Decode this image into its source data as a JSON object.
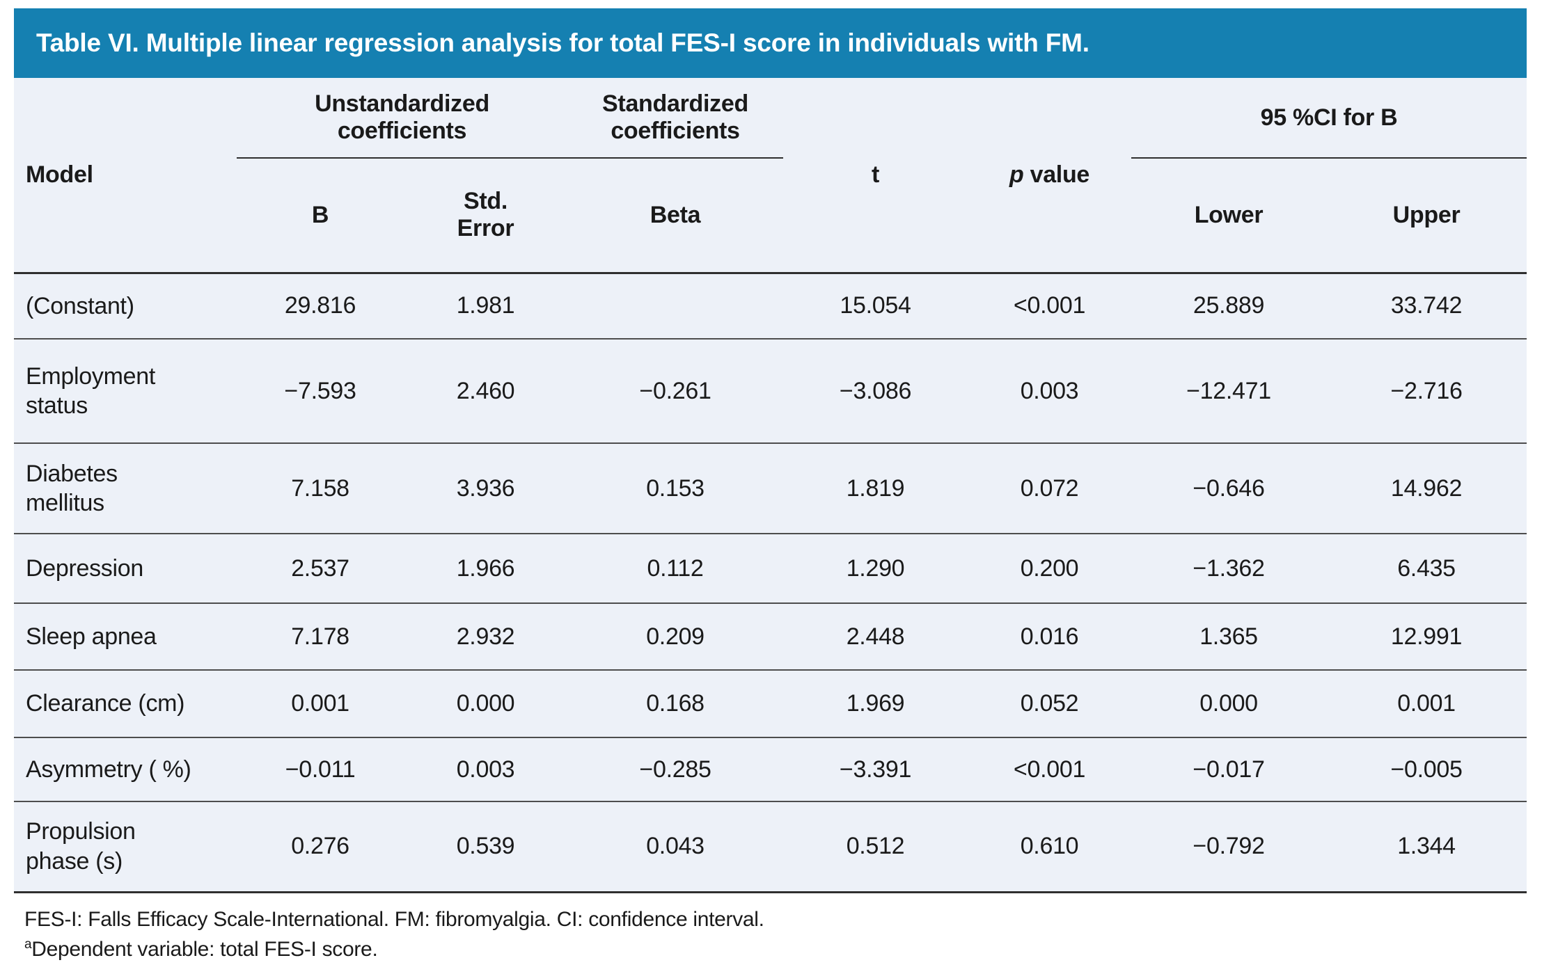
{
  "title": "Table VI. Multiple linear regression analysis for total FES-I score in individuals with FM.",
  "header": {
    "model": "Model",
    "unstandardized_group": "Unstandardized\ncoefficients",
    "standardized_group": "Standardized\ncoefficients",
    "t": "t",
    "p_italic": "p",
    "p_rest": " value",
    "ci_group": "95 %CI for B",
    "b": "B",
    "std_error": "Std.\nError",
    "beta": "Beta",
    "lower": "Lower",
    "upper": "Upper"
  },
  "rows": [
    {
      "model": "(Constant)",
      "b": "29.816",
      "std_error": "1.981",
      "beta": "",
      "t": "15.054",
      "p": "<0.001",
      "lower": "25.889",
      "upper": "33.742"
    },
    {
      "model": "Employment\nstatus",
      "b": "−7.593",
      "std_error": "2.460",
      "beta": "−0.261",
      "t": "−3.086",
      "p": "0.003",
      "lower": "−12.471",
      "upper": "−2.716"
    },
    {
      "model": "Diabetes\nmellitus",
      "b": "7.158",
      "std_error": "3.936",
      "beta": "0.153",
      "t": "1.819",
      "p": "0.072",
      "lower": "−0.646",
      "upper": "14.962"
    },
    {
      "model": "Depression",
      "b": "2.537",
      "std_error": "1.966",
      "beta": "0.112",
      "t": "1.290",
      "p": "0.200",
      "lower": "−1.362",
      "upper": "6.435"
    },
    {
      "model": "Sleep apnea",
      "b": "7.178",
      "std_error": "2.932",
      "beta": "0.209",
      "t": "2.448",
      "p": "0.016",
      "lower": "1.365",
      "upper": "12.991"
    },
    {
      "model": "Clearance (cm)",
      "b": "0.001",
      "std_error": "0.000",
      "beta": "0.168",
      "t": "1.969",
      "p": "0.052",
      "lower": "0.000",
      "upper": "0.001"
    },
    {
      "model": "Asymmetry ( %)",
      "b": "−0.011",
      "std_error": "0.003",
      "beta": "−0.285",
      "t": "−3.391",
      "p": "<0.001",
      "lower": "−0.017",
      "upper": "−0.005"
    },
    {
      "model": "Propulsion\nphase (s)",
      "b": "0.276",
      "std_error": "0.539",
      "beta": "0.043",
      "t": "0.512",
      "p": "0.610",
      "lower": "−0.792",
      "upper": "1.344"
    }
  ],
  "footnotes": {
    "abbreviations": "FES-I: Falls Efficacy Scale-International. FM: fibromyalgia. CI: confidence interval.",
    "marker": "a",
    "dependent": "Dependent variable: total FES-I score."
  },
  "colors": {
    "title_bar_bg": "#1580B1",
    "title_text": "#FFFFFF",
    "table_bg": "#EDF1F8",
    "rule_dark": "#2F2F2F",
    "rule_row": "#4D4D4D",
    "text": "#1A1A1A"
  }
}
